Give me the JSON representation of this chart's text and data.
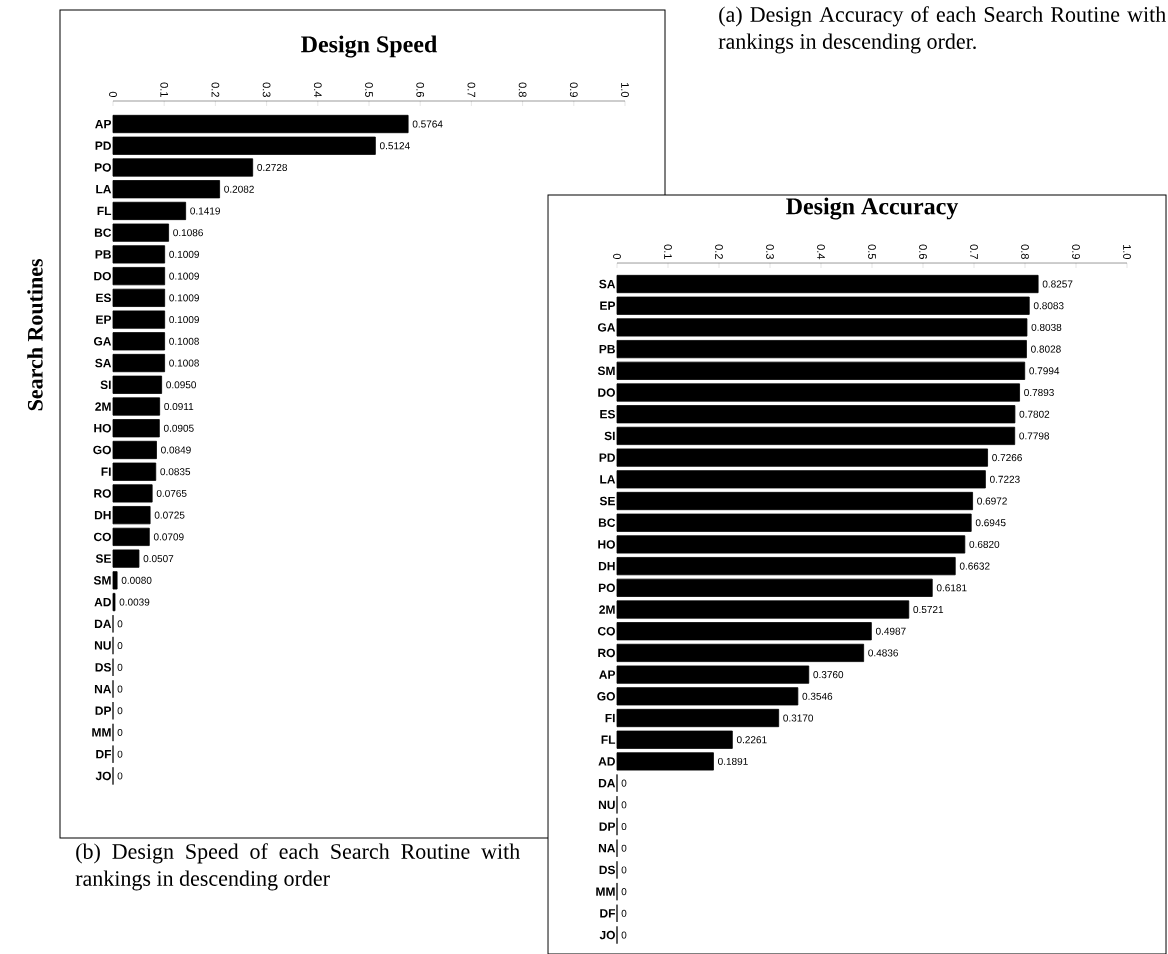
{
  "chart_data": [
    {
      "type": "bar",
      "orientation": "horizontal",
      "title": "Design Speed",
      "ylabel": "Search Routines",
      "color": "#000000",
      "categories": [
        "AP",
        "PD",
        "PO",
        "LA",
        "FL",
        "BC",
        "PB",
        "DO",
        "ES",
        "EP",
        "GA",
        "SA",
        "SI",
        "2M",
        "HO",
        "GO",
        "FI",
        "RO",
        "DH",
        "CO",
        "SE",
        "SM",
        "AD",
        "DA",
        "NU",
        "DS",
        "NA",
        "DP",
        "MM",
        "DF",
        "JO"
      ],
      "values": [
        0.5764,
        0.5124,
        0.2728,
        0.2082,
        0.1419,
        0.1086,
        0.1009,
        0.1009,
        0.1009,
        0.1009,
        0.1008,
        0.1008,
        0.095,
        0.0911,
        0.0905,
        0.0849,
        0.0835,
        0.0765,
        0.0725,
        0.0709,
        0.0507,
        0.008,
        0.0039,
        0,
        0,
        0,
        0,
        0,
        0,
        0,
        0
      ],
      "value_labels": [
        "0.5764",
        "0.5124",
        "0.2728",
        "0.2082",
        "0.1419",
        "0.1086",
        "0.1009",
        "0.1009",
        "0.1009",
        "0.1009",
        "0.1008",
        "0.1008",
        "0.0950",
        "0.0911",
        "0.0905",
        "0.0849",
        "0.0835",
        "0.0765",
        "0.0725",
        "0.0709",
        "0.0507",
        "0.0080",
        "0.0039",
        "0",
        "0",
        "0",
        "0",
        "0",
        "0",
        "0",
        "0"
      ],
      "xlim": [
        0,
        1
      ],
      "xticks": [
        0,
        0.1,
        0.2,
        0.3,
        0.4,
        0.5,
        0.6,
        0.7,
        0.8,
        0.9,
        {
          "value": 1,
          "label": "1.0"
        }
      ],
      "annotations": [
        "(b) Design Speed of each Search Routine with rankings in descending order"
      ]
    },
    {
      "type": "bar",
      "orientation": "horizontal",
      "title": "Design Accuracy",
      "color": "#000000",
      "categories": [
        "SA",
        "EP",
        "GA",
        "PB",
        "SM",
        "DO",
        "ES",
        "SI",
        "PD",
        "LA",
        "SE",
        "BC",
        "HO",
        "DH",
        "PO",
        "2M",
        "CO",
        "RO",
        "AP",
        "GO",
        "FI",
        "FL",
        "AD",
        "DA",
        "NU",
        "DP",
        "NA",
        "DS",
        "MM",
        "DF",
        "JO"
      ],
      "values": [
        0.8257,
        0.8083,
        0.8038,
        0.8028,
        0.7994,
        0.7893,
        0.7802,
        0.7798,
        0.7266,
        0.7223,
        0.6972,
        0.6945,
        0.682,
        0.6632,
        0.6181,
        0.5721,
        0.4987,
        0.4836,
        0.376,
        0.3546,
        0.317,
        0.2261,
        0.1891,
        0,
        0,
        0,
        0,
        0,
        0,
        0,
        0
      ],
      "value_labels": [
        "0.8257",
        "0.8083",
        "0.8038",
        "0.8028",
        "0.7994",
        "0.7893",
        "0.7802",
        "0.7798",
        "0.7266",
        "0.7223",
        "0.6972",
        "0.6945",
        "0.6820",
        "0.6632",
        "0.6181",
        "0.5721",
        "0.4987",
        "0.4836",
        "0.3760",
        "0.3546",
        "0.3170",
        "0.2261",
        "0.1891",
        "0",
        "0",
        "0",
        "0",
        "0",
        "0",
        "0",
        "0"
      ],
      "xlim": [
        0,
        1
      ],
      "xticks": [
        0,
        0.1,
        0.2,
        0.3,
        0.4,
        0.5,
        0.6,
        0.7,
        0.8,
        0.9,
        {
          "value": 1,
          "label": "1.0"
        }
      ],
      "annotations": [
        "(a) Design Accuracy of each Search Routine with rankings in descending order."
      ]
    }
  ]
}
